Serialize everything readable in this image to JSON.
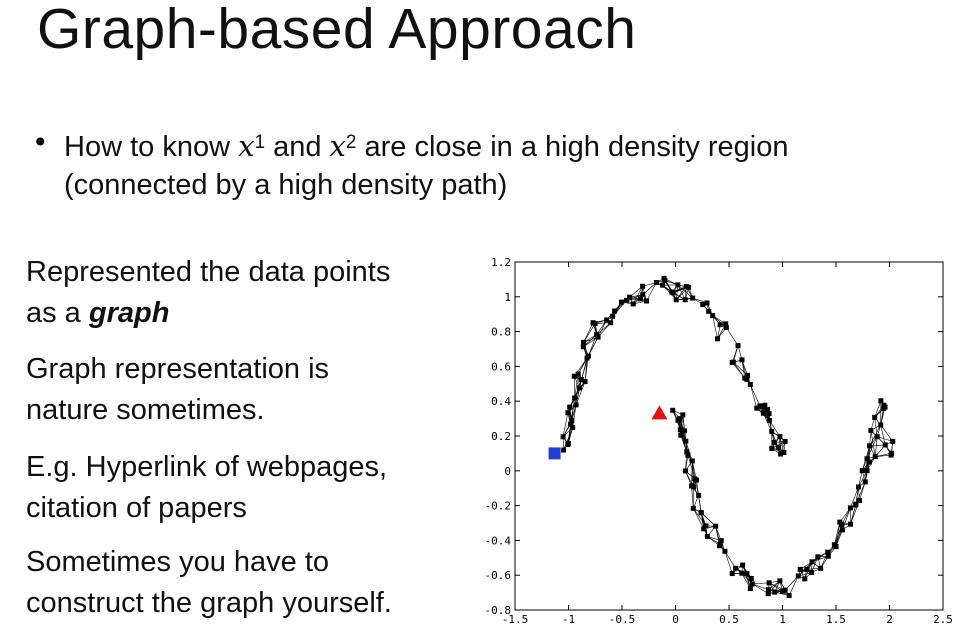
{
  "slide": {
    "title": "Graph-based Approach",
    "bullet": {
      "text_a": "How to know ",
      "x1_base": "x",
      "x1_sup": "1",
      "text_b": " and ",
      "x2_base": "x",
      "x2_sup": "2",
      "text_c": " are close in a high density region",
      "line2": "(connected by a high density path)"
    },
    "left": {
      "p1_line1": "Represented the data points",
      "p1_line2_prefix": "as a ",
      "p1_line2_emph": "graph",
      "p2_line1": "Graph representation is",
      "p2_line2": "nature sometimes.",
      "p3_line1": "E.g. Hyperlink of webpages,",
      "p3_line2": "citation of papers",
      "p4_line1": "Sometimes you have to",
      "p4_line2": "construct the graph yourself."
    }
  },
  "chart_data": {
    "type": "scatter",
    "title": "",
    "xlabel": "",
    "ylabel": "",
    "xlim": [
      -1.5,
      2.5
    ],
    "ylim": [
      -0.8,
      1.2
    ],
    "x_ticks": [
      "-1.5",
      "-1",
      "-0.5",
      "0",
      "0.5",
      "1",
      "1.5",
      "2",
      "2.5"
    ],
    "y_ticks": [
      "-0.8",
      "-0.6",
      "-0.4",
      "-0.2",
      "0",
      "0.2",
      "0.4",
      "0.6",
      "0.8",
      "1",
      "1.2"
    ],
    "grid": false,
    "colors": {
      "points": "#000000",
      "square": "#1f3fd0",
      "triangle": "#e01010"
    },
    "series": [
      {
        "marker": "square",
        "points": [
          [
            -1.0,
            0.15
          ],
          [
            -0.98,
            0.3
          ],
          [
            -0.95,
            0.42
          ],
          [
            -0.9,
            0.55
          ],
          [
            -0.82,
            0.68
          ],
          [
            -0.72,
            0.8
          ],
          [
            -0.6,
            0.9
          ],
          [
            -0.45,
            0.98
          ],
          [
            -0.3,
            1.02
          ],
          [
            -0.15,
            1.05
          ],
          [
            0.0,
            1.04
          ],
          [
            0.15,
            1.0
          ],
          [
            0.3,
            0.92
          ],
          [
            0.45,
            0.8
          ],
          [
            0.58,
            0.68
          ],
          [
            0.7,
            0.55
          ],
          [
            0.8,
            0.42
          ],
          [
            0.88,
            0.3
          ],
          [
            0.95,
            0.18
          ],
          [
            1.02,
            0.12
          ]
        ]
      },
      {
        "marker": "square",
        "points": [
          [
            0.02,
            0.3
          ],
          [
            0.05,
            0.18
          ],
          [
            0.1,
            0.05
          ],
          [
            0.15,
            -0.08
          ],
          [
            0.22,
            -0.2
          ],
          [
            0.32,
            -0.32
          ],
          [
            0.45,
            -0.45
          ],
          [
            0.58,
            -0.55
          ],
          [
            0.72,
            -0.62
          ],
          [
            0.88,
            -0.65
          ],
          [
            1.02,
            -0.66
          ],
          [
            1.18,
            -0.62
          ],
          [
            1.32,
            -0.55
          ],
          [
            1.45,
            -0.45
          ],
          [
            1.58,
            -0.32
          ],
          [
            1.68,
            -0.2
          ],
          [
            1.76,
            -0.05
          ],
          [
            1.82,
            0.1
          ],
          [
            1.88,
            0.25
          ],
          [
            1.95,
            0.4
          ],
          [
            2.02,
            0.15
          ]
        ]
      }
    ],
    "labeled": {
      "square_at": [
        -1.13,
        0.1
      ],
      "triangle_at": [
        -0.15,
        0.33
      ]
    }
  }
}
